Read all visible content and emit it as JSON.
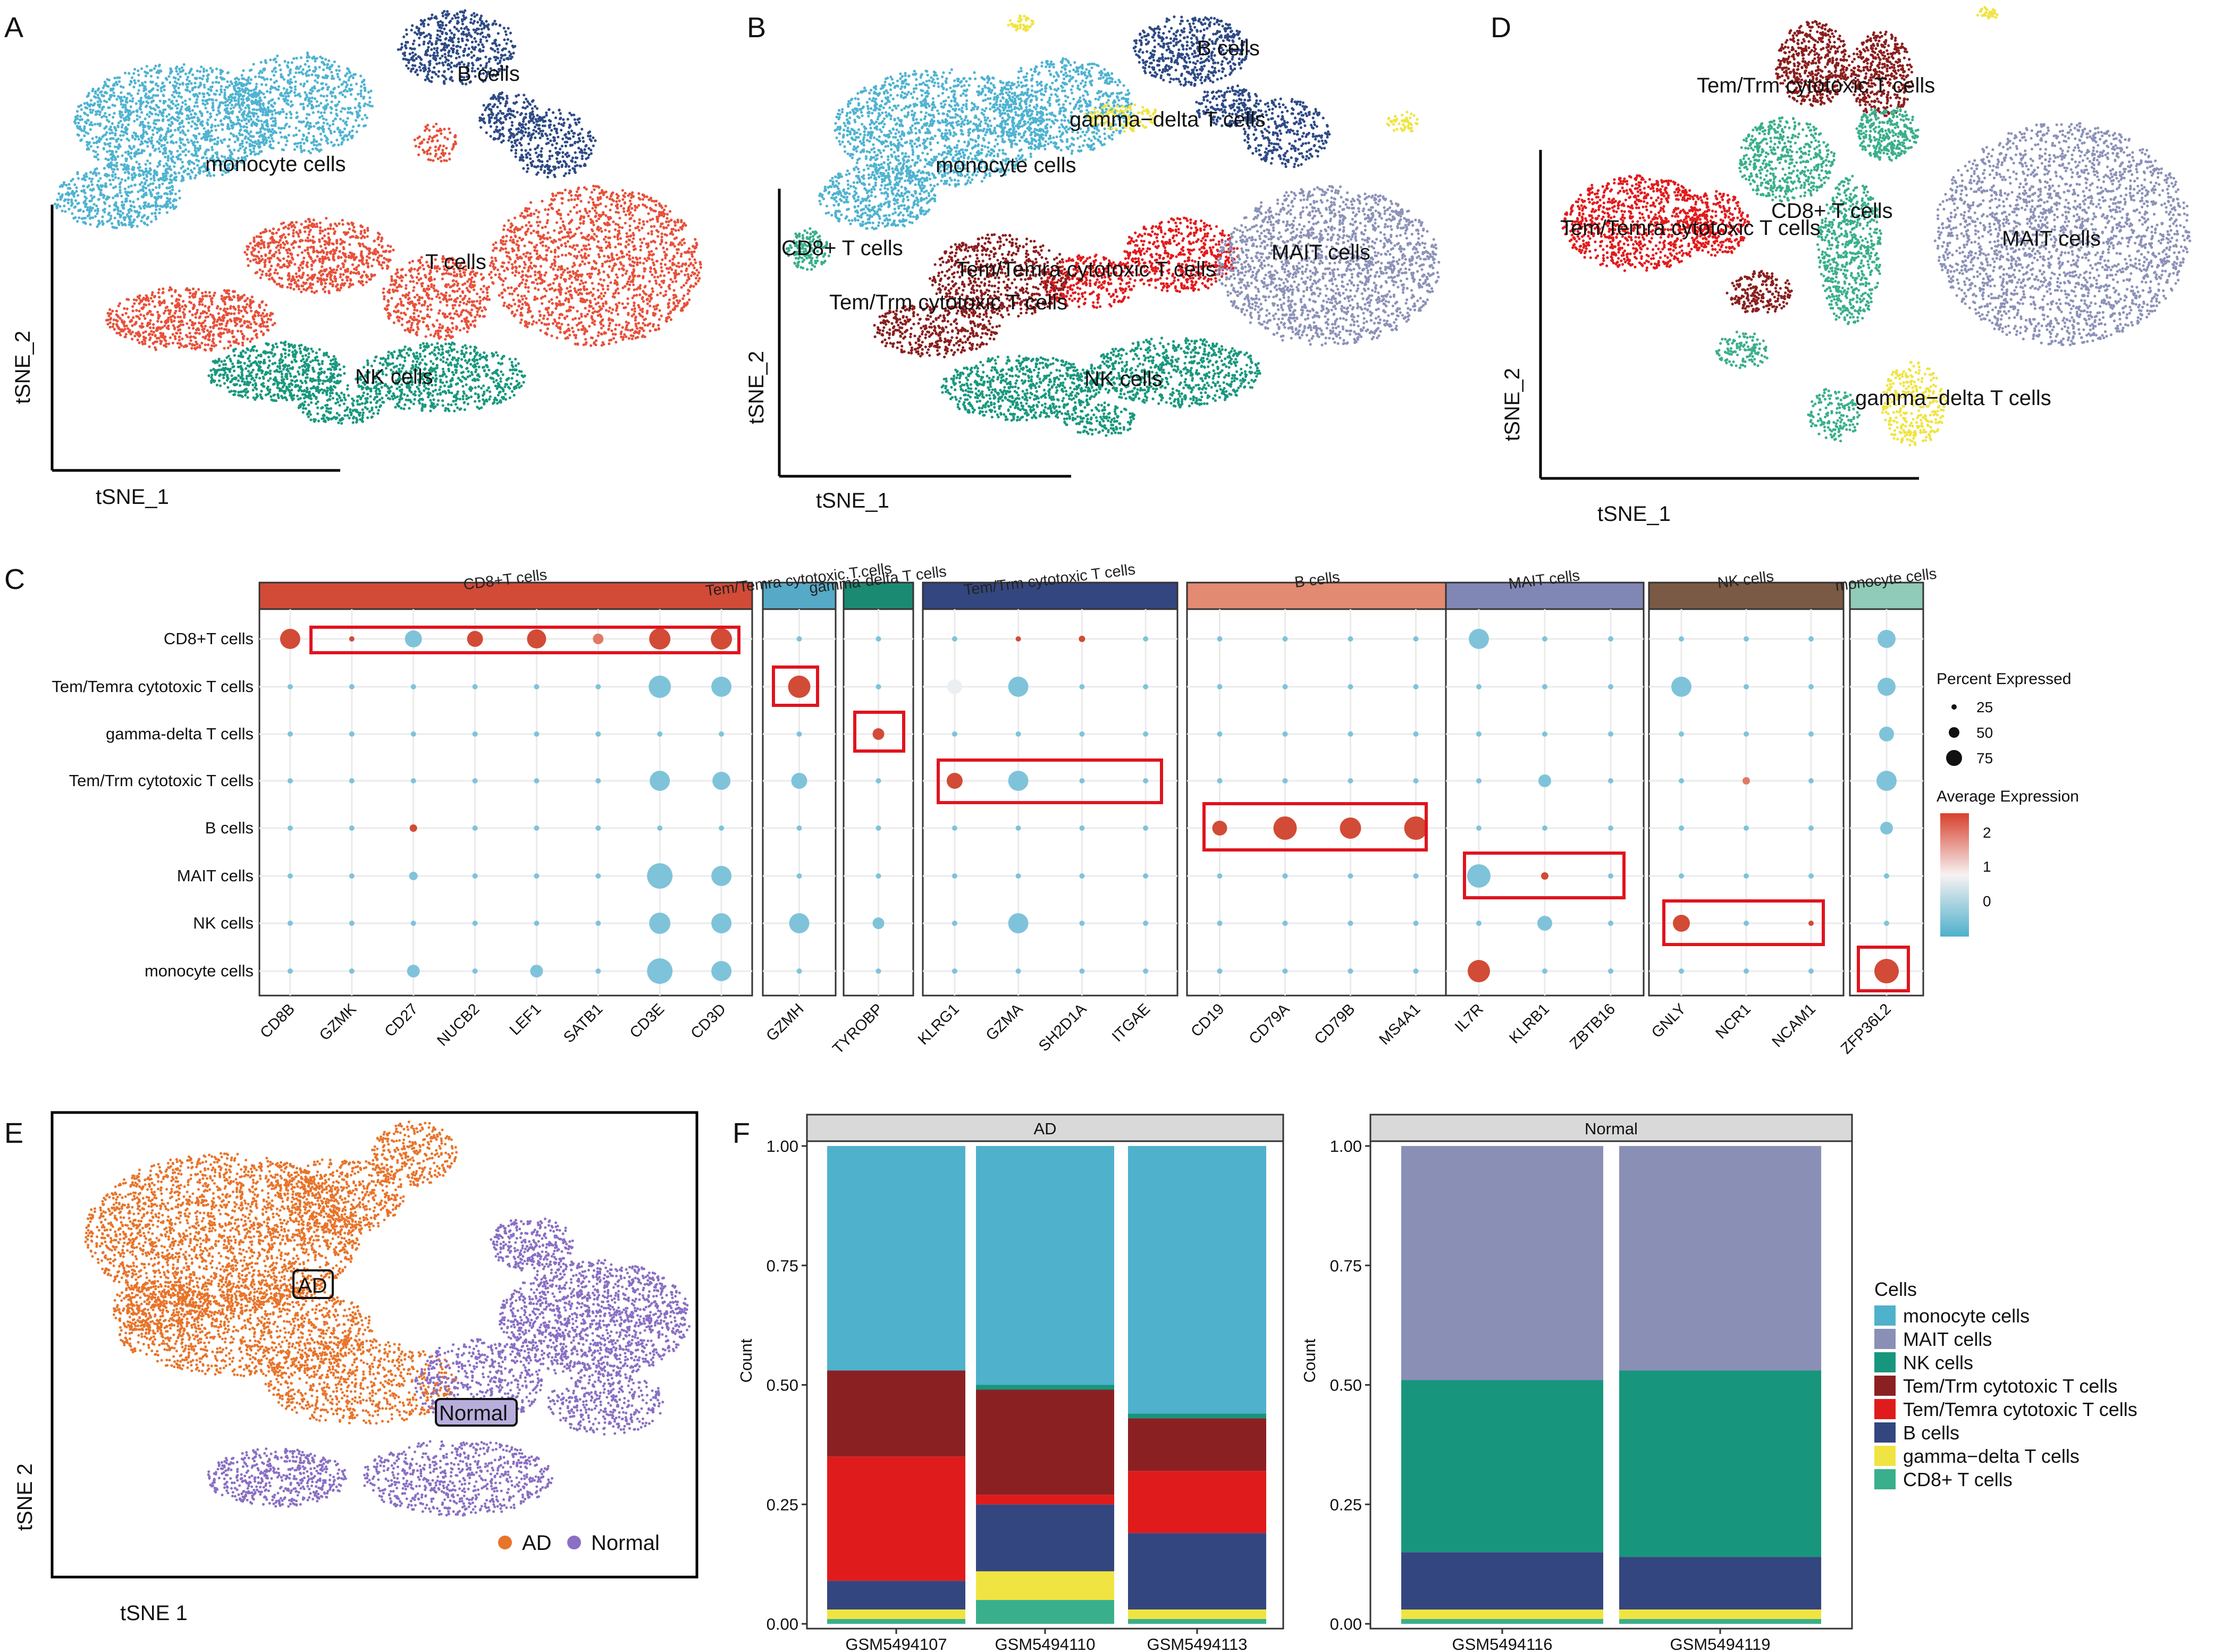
{
  "panels": {
    "A": {
      "letter": "A",
      "xlabel": "tSNE_1",
      "ylabel": "tSNE_2",
      "clusters": [
        {
          "name": "B cells",
          "color": "#2e4a87"
        },
        {
          "name": "monocyte cells",
          "color": "#4fb3d1"
        },
        {
          "name": "T cells",
          "color": "#e8503a"
        },
        {
          "name": "NK cells",
          "color": "#18987e"
        }
      ]
    },
    "B": {
      "letter": "B",
      "xlabel": "tSNE_1",
      "ylabel": "tSNE_2",
      "clusters": [
        {
          "name": "B cells",
          "color": "#2e4a87"
        },
        {
          "name": "gamma−delta T cells",
          "color": "#f0e442"
        },
        {
          "name": "monocyte cells",
          "color": "#4fb3d1"
        },
        {
          "name": "CD8+ T cells",
          "color": "#3aaf8c"
        },
        {
          "name": "Tem/Temra cytotoxic T cells",
          "color": "#e31a1c"
        },
        {
          "name": "MAIT cells",
          "color": "#8c92b8"
        },
        {
          "name": "Tem/Trm cytotoxic T cells",
          "color": "#8b1e1e"
        },
        {
          "name": "NK cells",
          "color": "#18987e"
        }
      ]
    },
    "D": {
      "letter": "D",
      "xlabel": "tSNE_1",
      "ylabel": "tSNE_2",
      "clusters": [
        {
          "name": "Tem/Trm cytotoxic T cells",
          "color": "#8b1e1e"
        },
        {
          "name": "CD8+ T cells",
          "color": "#3aaf8c"
        },
        {
          "name": "Tem/Temra cytotoxic T cells",
          "color": "#e31a1c"
        },
        {
          "name": "MAIT cells",
          "color": "#8c92b8"
        },
        {
          "name": "gamma−delta T cells",
          "color": "#f0e442"
        }
      ]
    },
    "C": {
      "letter": "C",
      "rows": [
        "CD8+T cells",
        "Tem/Temra cytotoxic T cells",
        "gamma-delta T cells",
        "Tem/Trm cytotoxic T cells",
        "B cells",
        "MAIT cells",
        "NK cells",
        "monocyte cells"
      ],
      "groups": [
        {
          "label": "CD8+T cells",
          "color": "#d24b36",
          "genes": [
            "CD8B",
            "GZMK",
            "CD27",
            "NUCB2",
            "LEF1",
            "SATB1",
            "CD3E",
            "CD3D"
          ]
        },
        {
          "label": "Tem/Temra cytotoxic.T.cells",
          "color": "#56aac7",
          "genes": [
            "GZMH"
          ]
        },
        {
          "label": "gamma-delta T cells",
          "color": "#1b8a73",
          "genes": [
            "TYROBP"
          ]
        },
        {
          "label": "Tem/Trm cytotoxic T cells",
          "color": "#34467f",
          "genes": [
            "KLRG1",
            "GZMA",
            "SH2D1A",
            "ITGAE"
          ]
        },
        {
          "label": "B cells",
          "color": "#e38a72",
          "genes": [
            "CD19",
            "CD79A",
            "CD79B",
            "MS4A1"
          ]
        },
        {
          "label": "MAIT cells",
          "color": "#8087b4",
          "genes": [
            "IL7R",
            "KLRB1",
            "ZBTB16"
          ]
        },
        {
          "label": "NK cells",
          "color": "#7a5a44",
          "genes": [
            "GNLY",
            "NCR1",
            "NCAM1"
          ]
        },
        {
          "label": "monocyte cells",
          "color": "#8fcbb8",
          "genes": [
            "ZFP36L2"
          ]
        }
      ],
      "legend": {
        "size_title": "Percent Expressed",
        "size_values": [
          "25",
          "50",
          "75"
        ],
        "color_title": "Average Expression",
        "color_values": [
          "2",
          "1",
          "0"
        ]
      }
    },
    "E": {
      "letter": "E",
      "xlabel": "tSNE 1",
      "ylabel": "tSNE 2",
      "groups": [
        {
          "name": "AD",
          "color": "#e8742a"
        },
        {
          "name": "Normal",
          "color": "#8a6fc4"
        }
      ]
    },
    "F": {
      "letter": "F"
    }
  },
  "chart_data": [
    {
      "type": "bar",
      "title": "AD",
      "stacked": true,
      "ylabel": "Count",
      "ylim": [
        0,
        1
      ],
      "yticks": [
        "0.00",
        "0.25",
        "0.50",
        "0.75",
        "1.00"
      ],
      "categories": [
        "GSM5494107",
        "GSM5494110",
        "GSM5494113"
      ],
      "series": [
        {
          "name": "CD8+ T cells",
          "color": "#3aaf8c",
          "values": [
            0.01,
            0.05,
            0.01
          ]
        },
        {
          "name": "gamma−delta T cells",
          "color": "#f0e442",
          "values": [
            0.02,
            0.06,
            0.02
          ]
        },
        {
          "name": "B cells",
          "color": "#34467f",
          "values": [
            0.06,
            0.14,
            0.16
          ]
        },
        {
          "name": "Tem/Temra cytotoxic T cells",
          "color": "#e01b1b",
          "values": [
            0.26,
            0.02,
            0.13
          ]
        },
        {
          "name": "Tem/Trm cytotoxic T cells",
          "color": "#8b2023",
          "values": [
            0.18,
            0.22,
            0.11
          ]
        },
        {
          "name": "NK cells",
          "color": "#17967d",
          "values": [
            0.0,
            0.01,
            0.01
          ]
        },
        {
          "name": "MAIT cells",
          "color": "#8a8fb6",
          "values": [
            0.0,
            0.0,
            0.0
          ]
        },
        {
          "name": "monocyte cells",
          "color": "#4fb1cb",
          "values": [
            0.47,
            0.5,
            0.56
          ]
        }
      ]
    },
    {
      "type": "bar",
      "title": "Normal",
      "stacked": true,
      "ylabel": "Count",
      "ylim": [
        0,
        1
      ],
      "yticks": [
        "0.00",
        "0.25",
        "0.50",
        "0.75",
        "1.00"
      ],
      "categories": [
        "GSM5494116",
        "GSM5494119"
      ],
      "series": [
        {
          "name": "CD8+ T cells",
          "color": "#3aaf8c",
          "values": [
            0.01,
            0.01
          ]
        },
        {
          "name": "gamma−delta T cells",
          "color": "#f0e442",
          "values": [
            0.02,
            0.02
          ]
        },
        {
          "name": "B cells",
          "color": "#34467f",
          "values": [
            0.12,
            0.11
          ]
        },
        {
          "name": "Tem/Temra cytotoxic T cells",
          "color": "#e01b1b",
          "values": [
            0.0,
            0.0
          ]
        },
        {
          "name": "Tem/Trm cytotoxic T cells",
          "color": "#8b2023",
          "values": [
            0.0,
            0.0
          ]
        },
        {
          "name": "NK cells",
          "color": "#17967d",
          "values": [
            0.36,
            0.39
          ]
        },
        {
          "name": "MAIT cells",
          "color": "#8a8fb6",
          "values": [
            0.49,
            0.47
          ]
        },
        {
          "name": "monocyte cells",
          "color": "#4fb1cb",
          "values": [
            0.0,
            0.0
          ]
        }
      ]
    }
  ],
  "bar_legend": {
    "title": "Cells",
    "items": [
      {
        "name": "monocyte cells",
        "color": "#4fb1cb"
      },
      {
        "name": "MAIT cells",
        "color": "#8a8fb6"
      },
      {
        "name": "NK cells",
        "color": "#17967d"
      },
      {
        "name": "Tem/Trm cytotoxic T cells",
        "color": "#8b2023"
      },
      {
        "name": "Tem/Temra cytotoxic T cells",
        "color": "#e01b1b"
      },
      {
        "name": "B cells",
        "color": "#34467f"
      },
      {
        "name": "gamma−delta T cells",
        "color": "#f0e442"
      },
      {
        "name": "CD8+ T cells",
        "color": "#3aaf8c"
      }
    ]
  }
}
